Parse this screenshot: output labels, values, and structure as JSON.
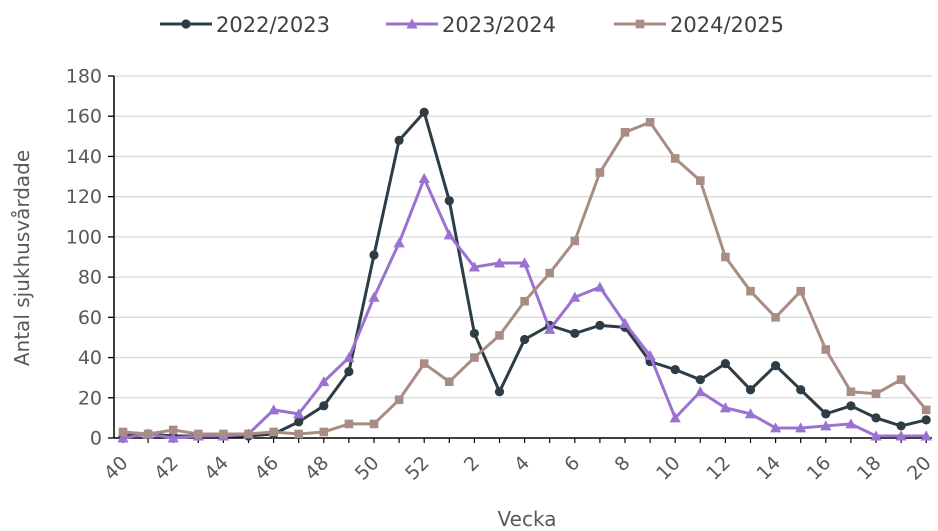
{
  "chart_data": {
    "type": "line",
    "title": "",
    "xlabel": "Vecka",
    "ylabel": "Antal sjukhusvårdade",
    "ylim": [
      0,
      180
    ],
    "yticks": [
      0,
      20,
      40,
      60,
      80,
      100,
      120,
      140,
      160,
      180
    ],
    "grid": true,
    "legend_position": "top",
    "categories": [
      40,
      41,
      42,
      43,
      44,
      45,
      46,
      47,
      48,
      49,
      50,
      51,
      52,
      1,
      2,
      3,
      4,
      5,
      6,
      7,
      8,
      9,
      10,
      11,
      12,
      13,
      14,
      15,
      16,
      17,
      18,
      19,
      20
    ],
    "x_tick_labels": [
      "40",
      "42",
      "44",
      "46",
      "48",
      "50",
      "52",
      "2",
      "4",
      "6",
      "8",
      "10",
      "12",
      "14",
      "16",
      "18",
      "20"
    ],
    "series": [
      {
        "name": "2022/2023",
        "color": "#2e3d45",
        "marker": "circle",
        "values": [
          1,
          2,
          1,
          1,
          1,
          1,
          2,
          8,
          16,
          33,
          91,
          148,
          162,
          118,
          52,
          23,
          49,
          56,
          52,
          56,
          55,
          38,
          34,
          29,
          37,
          24,
          36,
          24,
          12,
          16,
          10,
          6,
          9
        ]
      },
      {
        "name": "2023/2024",
        "color": "#9b72d2",
        "marker": "triangle",
        "values": [
          0,
          2,
          0,
          1,
          1,
          2,
          14,
          12,
          28,
          40,
          70,
          97,
          129,
          101,
          85,
          87,
          87,
          54,
          70,
          75,
          57,
          41,
          10,
          23,
          15,
          12,
          5,
          5,
          6,
          7,
          1,
          1,
          1
        ]
      },
      {
        "name": "2024/2025",
        "color": "#a88d84",
        "marker": "square",
        "values": [
          3,
          2,
          4,
          2,
          2,
          2,
          3,
          2,
          3,
          7,
          7,
          19,
          37,
          28,
          40,
          51,
          68,
          82,
          98,
          132,
          152,
          157,
          139,
          128,
          90,
          73,
          60,
          73,
          44,
          23,
          22,
          29,
          14
        ]
      }
    ]
  }
}
